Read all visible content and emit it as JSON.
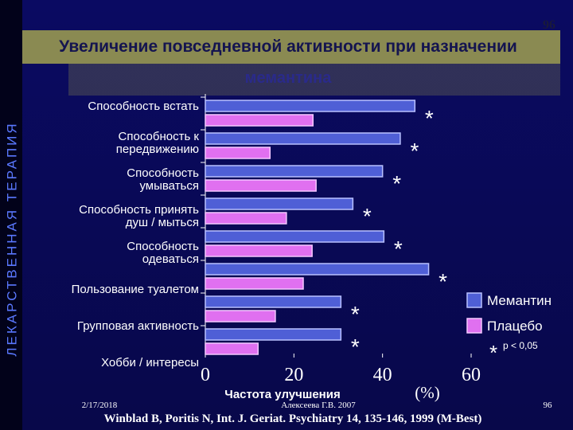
{
  "slide": {
    "sidebar": "ЛЕКАРСТВЕННАЯ ТЕРАПИЯ",
    "page_number": "96",
    "date": "2/17/2018",
    "author": "Алексеева Г.В. 2007",
    "reference": "Winblad B, Poritis N, Int. J. Geriat. Psychiatry 14, 135-146, 1999 (M-Best)",
    "footer_number": "96"
  },
  "chart_data": {
    "type": "hbar",
    "title": "Увеличение повседневной активности при назначении",
    "subtitle": "мемантина",
    "categories": [
      "Способность встать",
      "Способность к\nпередвижению",
      "Способность\nумываться",
      "Способность принять\nдуш / мыться",
      "Способность\nодеваться",
      "Пользование туалетом",
      "Групповая активность",
      "Хобби / интересы"
    ],
    "series": [
      {
        "name": "Мемантин",
        "color": "#4f5fd6",
        "values": [
          47.3,
          44,
          40,
          33.3,
          40.3,
          50.4,
          30.6,
          30.6
        ]
      },
      {
        "name": "Плацебо",
        "color": "#e070f0",
        "values": [
          24.3,
          14.6,
          25,
          18.3,
          24.1,
          22.1,
          15.8,
          11.9
        ]
      }
    ],
    "xlim": [
      0,
      60
    ],
    "xticks": [
      0,
      20,
      40,
      60
    ],
    "xlabel": "Частота улучшения",
    "xunit": "(%)",
    "marker": "*",
    "marker_note": "p < 0,05"
  }
}
